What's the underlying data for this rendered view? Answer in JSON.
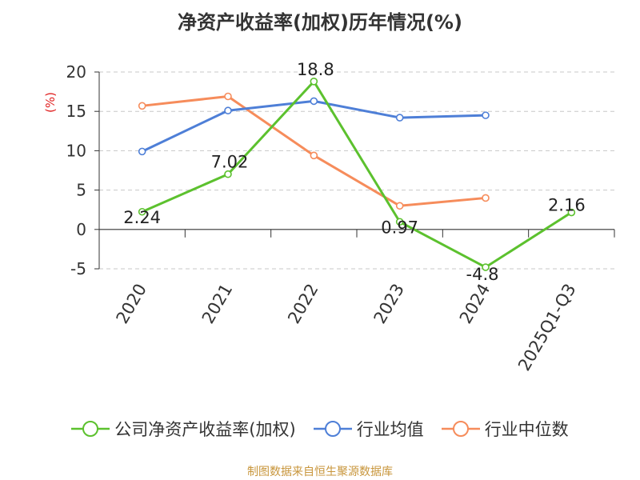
{
  "chart_data": {
    "type": "line",
    "title": "净资产收益率(加权)历年情况(%)",
    "ylabel": "(%)",
    "xlabel": "",
    "categories": [
      "2020",
      "2021",
      "2022",
      "2023",
      "2024",
      "2025Q1-Q3"
    ],
    "yticks": [
      "20",
      "15",
      "10",
      "5",
      "0",
      "-5"
    ],
    "ylim": [
      -5,
      20
    ],
    "grid": "horizontal dashed",
    "legend_position": "bottom",
    "series": [
      {
        "name": "公司净资产收益率(加权)",
        "color": "#5cc12e",
        "values": [
          2.24,
          7.02,
          18.8,
          0.97,
          -4.8,
          2.16
        ],
        "labels": [
          "2.24",
          "7.02",
          "18.8",
          "0.97",
          "-4.8",
          "2.16"
        ]
      },
      {
        "name": "行业均值",
        "color": "#4e7fd7",
        "values": [
          9.9,
          15.1,
          16.3,
          14.2,
          14.5,
          null
        ]
      },
      {
        "name": "行业中位数",
        "color": "#f68c5b",
        "values": [
          15.7,
          16.9,
          9.4,
          3.0,
          4.0,
          null
        ]
      }
    ]
  },
  "footer": {
    "source": "制图数据来自恒生聚源数据库"
  }
}
